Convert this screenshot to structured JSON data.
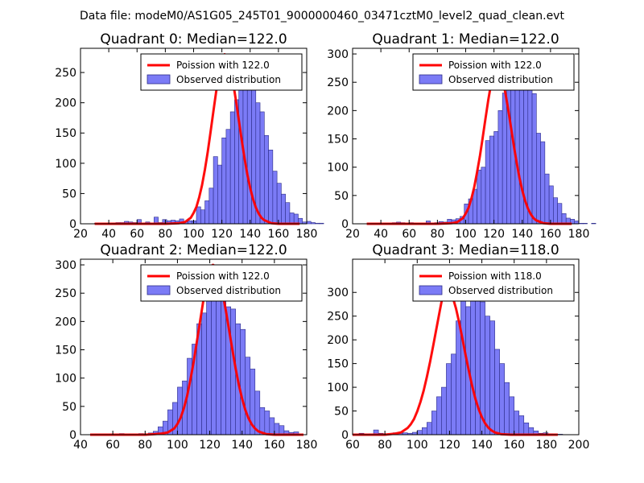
{
  "figure": {
    "suptitle": "Data file: modeM0/AS1G05_245T01_9000000460_03471cztM0_level2_quad_clean.evt",
    "colors": {
      "hist_fill": "#7b7bf6",
      "hist_edge": "#2c2c88",
      "poisson_line": "#ff0000",
      "background": "#ffffff"
    },
    "legend_labels": {
      "line": "Poission with {mu}",
      "hist": "Observed distribution"
    }
  },
  "chart_data": [
    {
      "type": "bar",
      "title": "Quadrant 0: Median=122.0",
      "median": "122.0",
      "legend_location": "upper-right",
      "xlim": [
        20,
        180
      ],
      "ylim": [
        0,
        290
      ],
      "xticks": [
        20,
        40,
        60,
        80,
        100,
        120,
        140,
        160,
        180
      ],
      "yticks": [
        0,
        50,
        100,
        150,
        200,
        250
      ],
      "bin_width": 3,
      "bin_start": 30,
      "counts": [
        1,
        0,
        1,
        0,
        1,
        2,
        2,
        4,
        3,
        2,
        7,
        1,
        3,
        1,
        11,
        2,
        7,
        5,
        6,
        5,
        8,
        3,
        5,
        5,
        28,
        23,
        38,
        59,
        111,
        97,
        142,
        156,
        185,
        205,
        240,
        249,
        231,
        231,
        200,
        185,
        146,
        122,
        87,
        67,
        49,
        35,
        18,
        16,
        9,
        3,
        4,
        2,
        1,
        1
      ],
      "poisson": {
        "mu": 122,
        "peak": 280,
        "x": [
          30,
          40,
          50,
          60,
          70,
          80,
          90,
          94,
          98,
          100,
          102,
          104,
          106,
          108,
          110,
          112,
          114,
          116,
          118,
          120,
          121,
          122,
          123,
          124,
          126,
          128,
          130,
          132,
          134,
          136,
          138,
          140,
          142,
          144,
          146,
          148,
          150,
          155,
          160,
          165,
          170,
          175
        ],
        "y": [
          0,
          0,
          0,
          0,
          0,
          0,
          1,
          3,
          10,
          18,
          28,
          44,
          64,
          90,
          119,
          152,
          186,
          219,
          248,
          270,
          277,
          280,
          277,
          272,
          256,
          232,
          203,
          171,
          139,
          109,
          82,
          59,
          41,
          27,
          17,
          10,
          6,
          1,
          0,
          0,
          0,
          0
        ]
      }
    },
    {
      "type": "bar",
      "title": "Quadrant 1: Median=122.0",
      "median": "122.0",
      "legend_location": "upper-right",
      "xlim": [
        20,
        180
      ],
      "ylim": [
        0,
        310
      ],
      "xticks": [
        20,
        40,
        60,
        80,
        100,
        120,
        140,
        160,
        180
      ],
      "yticks": [
        0,
        50,
        100,
        150,
        200,
        250,
        300
      ],
      "bin_width": 3,
      "bin_start": 30,
      "counts": [
        0,
        1,
        1,
        0,
        1,
        1,
        2,
        3,
        2,
        1,
        2,
        1,
        1,
        1,
        5,
        1,
        2,
        4,
        3,
        8,
        7,
        9,
        13,
        35,
        44,
        61,
        95,
        100,
        147,
        155,
        163,
        200,
        231,
        275,
        260,
        282,
        275,
        291,
        269,
        230,
        160,
        145,
        88,
        67,
        46,
        36,
        18,
        10,
        8,
        5,
        1,
        1,
        0,
        1
      ],
      "poisson": {
        "mu": 122,
        "peak": 296,
        "x": [
          30,
          40,
          50,
          60,
          70,
          80,
          90,
          94,
          98,
          100,
          102,
          104,
          106,
          108,
          110,
          112,
          114,
          116,
          118,
          120,
          121,
          122,
          123,
          124,
          126,
          128,
          130,
          132,
          134,
          136,
          138,
          140,
          142,
          144,
          146,
          148,
          150,
          155,
          160,
          165,
          170,
          175
        ],
        "y": [
          0,
          0,
          0,
          0,
          0,
          0,
          1,
          3,
          10,
          18,
          28,
          44,
          64,
          90,
          119,
          152,
          186,
          219,
          248,
          270,
          277,
          296,
          277,
          272,
          256,
          232,
          203,
          171,
          139,
          109,
          82,
          59,
          41,
          27,
          17,
          10,
          6,
          1,
          0,
          0,
          0,
          0
        ]
      }
    },
    {
      "type": "bar",
      "title": "Quadrant 2: Median=122.0",
      "median": "122.0",
      "legend_location": "upper-right",
      "xlim": [
        40,
        180
      ],
      "ylim": [
        0,
        310
      ],
      "xticks": [
        40,
        60,
        80,
        100,
        120,
        140,
        160,
        180
      ],
      "yticks": [
        0,
        50,
        100,
        150,
        200,
        250,
        300
      ],
      "bin_width": 3,
      "bin_start": 46,
      "counts": [
        0,
        1,
        0,
        0,
        1,
        0,
        2,
        0,
        1,
        0,
        2,
        1,
        3,
        6,
        14,
        24,
        44,
        57,
        84,
        95,
        135,
        160,
        196,
        215,
        238,
        272,
        290,
        286,
        226,
        222,
        196,
        186,
        137,
        116,
        77,
        48,
        42,
        30,
        20,
        16,
        7,
        4,
        5,
        0
      ],
      "poisson": {
        "mu": 122,
        "peak": 300,
        "x": [
          46,
          60,
          70,
          80,
          86,
          90,
          94,
          98,
          100,
          102,
          104,
          106,
          108,
          110,
          112,
          114,
          116,
          118,
          120,
          121,
          122,
          123,
          124,
          126,
          128,
          130,
          132,
          134,
          136,
          138,
          140,
          142,
          144,
          146,
          148,
          150,
          155,
          160,
          165,
          170,
          178
        ],
        "y": [
          0,
          0,
          0,
          0,
          1,
          2,
          4,
          11,
          19,
          30,
          47,
          69,
          97,
          128,
          164,
          200,
          236,
          267,
          291,
          298,
          300,
          298,
          293,
          276,
          250,
          219,
          184,
          150,
          117,
          88,
          64,
          44,
          29,
          18,
          11,
          6,
          1,
          0,
          0,
          0,
          0
        ]
      }
    },
    {
      "type": "bar",
      "title": "Quadrant 3: Median=118.0",
      "median": "118.0",
      "legend_location": "upper-right",
      "xlim": [
        60,
        200
      ],
      "ylim": [
        0,
        370
      ],
      "xticks": [
        60,
        80,
        100,
        120,
        140,
        160,
        180,
        200
      ],
      "yticks": [
        0,
        50,
        100,
        150,
        200,
        250,
        300
      ],
      "bin_width": 3,
      "bin_start": 64,
      "counts": [
        3,
        1,
        2,
        10,
        3,
        2,
        1,
        4,
        3,
        4,
        3,
        5,
        9,
        15,
        26,
        50,
        80,
        100,
        150,
        170,
        240,
        290,
        270,
        320,
        340,
        280,
        250,
        240,
        180,
        150,
        110,
        80,
        50,
        40,
        25,
        15,
        8,
        3,
        4,
        2,
        1,
        1,
        0,
        0
      ],
      "poisson": {
        "mu": 118,
        "peak": 330,
        "x": [
          60,
          70,
          80,
          86,
          90,
          94,
          96,
          98,
          100,
          102,
          104,
          106,
          108,
          110,
          112,
          114,
          116,
          117,
          118,
          119,
          120,
          122,
          124,
          126,
          128,
          130,
          132,
          134,
          136,
          138,
          140,
          142,
          144,
          146,
          148,
          152,
          158,
          165,
          175,
          187
        ],
        "y": [
          0,
          0,
          0,
          2,
          5,
          14,
          22,
          33,
          49,
          69,
          93,
          122,
          154,
          190,
          226,
          262,
          297,
          311,
          330,
          311,
          305,
          290,
          266,
          236,
          202,
          167,
          134,
          103,
          76,
          54,
          37,
          24,
          15,
          9,
          5,
          1,
          0,
          0,
          0,
          0
        ]
      }
    }
  ]
}
